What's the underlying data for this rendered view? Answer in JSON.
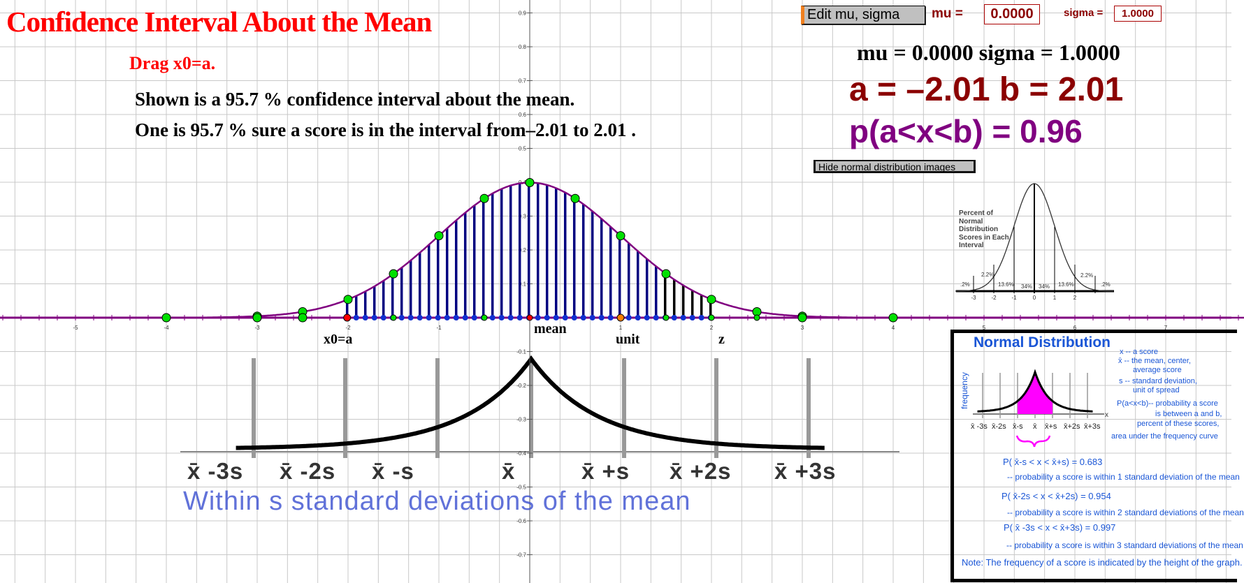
{
  "header": {
    "title": "Confidence Interval About the Mean",
    "instruction": "Drag x0=a.",
    "line1": "Shown is a  95.7 % confidence interval about the mean.",
    "line2": "One is  95.7 % sure a score is in the interval from–2.01 to 2.01 ."
  },
  "controls": {
    "edit_button": "Edit mu, sigma",
    "mu_label": "mu =",
    "mu_value": "0.0000",
    "sigma_label": "sigma =",
    "sigma_value": "1.0000",
    "hide_button": "Hide normal distribution images"
  },
  "readouts": {
    "mu_sigma": "mu = 0.0000  sigma = 1.0000",
    "ab": "a = –2.01  b = 2.01",
    "prob": "p(a<x<b) = 0.96"
  },
  "graph": {
    "mu": 0,
    "sigma": 1,
    "a": -2.01,
    "b": 2.01,
    "confidence_percent": 95.7,
    "x_ticks": [
      -5,
      -4,
      -3,
      -2,
      -1,
      1,
      2,
      3,
      4,
      5,
      6,
      7
    ],
    "y_ticks": [
      0.9,
      0.8,
      0.7,
      0.6,
      0.5,
      0.4,
      0.3,
      0.2,
      0.1,
      -0.1,
      -0.2,
      -0.3,
      -0.4,
      -0.5,
      -0.6,
      -0.7
    ],
    "point_labels": {
      "x0": "x0=a",
      "mean": "mean",
      "unit": "unit",
      "z": "z"
    },
    "colors": {
      "curve": "#800080",
      "bars": "#000080",
      "bars_tail": "#000000",
      "point": "#00e000",
      "axis": "#800080",
      "x0_point": "#ff0000",
      "unit_point": "#ff8000"
    }
  },
  "lower_image": {
    "labels": [
      "x̄ -3s",
      "x̄ -2s",
      "x̄ -s",
      "x̄",
      "x̄ +s",
      "x̄ +2s",
      "x̄ +3s"
    ],
    "caption": "Within s standard deviations of the mean"
  },
  "percent_image": {
    "heading": [
      "Percent of",
      "Normal",
      "Distribution",
      "Scores in Each",
      "Interval"
    ],
    "percents": [
      ".2%",
      "2.2%",
      "13.6%",
      "34%",
      "34%",
      "13.6%",
      "2.2%",
      ".2%"
    ],
    "ticks": [
      "-3",
      "-2",
      "-1",
      "0",
      "1",
      "2"
    ]
  },
  "normal_box": {
    "title": "Normal Distribution",
    "ylabel": "frequency",
    "xlabel": "x",
    "tick_labels": [
      "x̄ -3s",
      "x̄-2s",
      "x̄-s",
      "x̄",
      "x̄+s",
      "x̄+2s",
      "x̄+3s"
    ],
    "legend": [
      "x -- a score",
      "x̄ -- the mean, center,",
      "average score",
      "s -- standard deviation,",
      "unit of spread",
      "P(a<x<b)-- probability a score",
      "is between a and b,",
      "percent of these scores,",
      "area under the frequency curve"
    ],
    "rules": [
      {
        "formula": "P( x̄-s < x < x̄+s) = 0.683",
        "desc": "-- probability a score is  within 1 standard deviation of the mean"
      },
      {
        "formula": "P( x̄-2s < x < x̄+2s) = 0.954",
        "desc": "-- probability a score is within 2 standard deviations of the mean"
      },
      {
        "formula": "P( x̄ -3s < x < x̄+3s) = 0.997",
        "desc": "-- probability a score is within 3 standard deviations of the mean"
      }
    ],
    "note": "Note: The frequency of a score is indicated by the height of the graph."
  }
}
